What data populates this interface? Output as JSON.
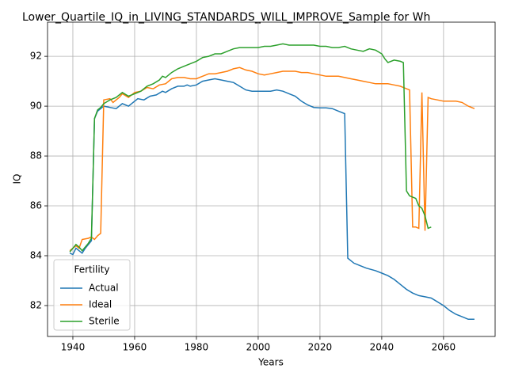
{
  "chart_data": {
    "type": "line",
    "title": "Lower_Quartile_IQ_in_LIVING_STANDARDS_WILL_IMPROVE_Sample for Wh",
    "xlabel": "Years",
    "ylabel": "IQ",
    "xlim": [
      1931.8,
      2076.7
    ],
    "ylim": [
      80.76,
      93.37
    ],
    "xticks": [
      1940,
      1960,
      1980,
      2000,
      2020,
      2040,
      2060
    ],
    "yticks": [
      82,
      84,
      86,
      88,
      90,
      92
    ],
    "grid": true,
    "legend_title": "Fertility",
    "legend_loc": "lower left",
    "series": [
      {
        "name": "Actual",
        "color": "#1f77b4",
        "x": [
          1939,
          1940,
          1941,
          1942,
          1943,
          1944,
          1946,
          1947,
          1948,
          1949,
          1950,
          1952,
          1954,
          1956,
          1958,
          1960,
          1961,
          1963,
          1965,
          1967,
          1969,
          1970,
          1972,
          1974,
          1976,
          1977,
          1978,
          1980,
          1982,
          1984,
          1986,
          1988,
          1990,
          1992,
          1994,
          1996,
          1998,
          2000,
          2002,
          2004,
          2006,
          2008,
          2010,
          2012,
          2014,
          2016,
          2018,
          2020,
          2022,
          2024,
          2026,
          2028,
          2029,
          2031,
          2033,
          2035,
          2038,
          2040,
          2042,
          2044,
          2046,
          2048,
          2050,
          2052,
          2054,
          2056,
          2058,
          2060,
          2062,
          2064,
          2066,
          2068,
          2070
        ],
        "values": [
          84.1,
          84.05,
          84.3,
          84.2,
          84.1,
          84.3,
          84.6,
          89.5,
          89.8,
          89.9,
          90.0,
          89.95,
          89.9,
          90.1,
          90.0,
          90.2,
          90.3,
          90.25,
          90.4,
          90.45,
          90.6,
          90.55,
          90.7,
          90.8,
          90.8,
          90.85,
          90.8,
          90.85,
          91.0,
          91.05,
          91.1,
          91.05,
          91.0,
          90.95,
          90.8,
          90.65,
          90.6,
          90.6,
          90.6,
          90.6,
          90.65,
          90.6,
          90.5,
          90.4,
          90.2,
          90.05,
          89.95,
          89.93,
          89.93,
          89.9,
          89.8,
          89.7,
          83.9,
          83.7,
          83.6,
          83.5,
          83.4,
          83.3,
          83.2,
          83.05,
          82.85,
          82.65,
          82.5,
          82.4,
          82.35,
          82.3,
          82.15,
          82.0,
          81.8,
          81.65,
          81.55,
          81.45,
          81.45
        ]
      },
      {
        "name": "Ideal",
        "color": "#ff7f0e",
        "x": [
          1939,
          1941,
          1942,
          1943,
          1945,
          1946,
          1947,
          1948,
          1949,
          1950,
          1952,
          1953,
          1955,
          1956,
          1958,
          1960,
          1962,
          1964,
          1966,
          1968,
          1970,
          1972,
          1974,
          1976,
          1978,
          1980,
          1982,
          1984,
          1986,
          1988,
          1990,
          1992,
          1994,
          1996,
          1998,
          2000,
          2002,
          2004,
          2006,
          2008,
          2010,
          2012,
          2014,
          2016,
          2018,
          2020,
          2022,
          2024,
          2026,
          2028,
          2030,
          2032,
          2034,
          2036,
          2038,
          2040,
          2042,
          2044,
          2046,
          2048,
          2049,
          2050,
          2051,
          2052,
          2053,
          2054,
          2055,
          2056,
          2058,
          2060,
          2062,
          2064,
          2066,
          2068,
          2070
        ],
        "values": [
          84.2,
          84.4,
          84.3,
          84.65,
          84.7,
          84.75,
          84.65,
          84.8,
          84.9,
          90.25,
          90.3,
          90.15,
          90.35,
          90.5,
          90.35,
          90.55,
          90.6,
          90.75,
          90.7,
          90.85,
          90.9,
          91.1,
          91.15,
          91.15,
          91.1,
          91.1,
          91.2,
          91.3,
          91.3,
          91.35,
          91.4,
          91.5,
          91.55,
          91.45,
          91.4,
          91.3,
          91.25,
          91.3,
          91.35,
          91.4,
          91.4,
          91.4,
          91.35,
          91.35,
          91.3,
          91.25,
          91.2,
          91.2,
          91.2,
          91.15,
          91.1,
          91.05,
          91.0,
          90.95,
          90.9,
          90.9,
          90.9,
          90.85,
          90.8,
          90.7,
          90.65,
          85.15,
          85.15,
          85.1,
          90.55,
          85.0,
          90.35,
          90.3,
          90.25,
          90.2,
          90.2,
          90.2,
          90.15,
          90.0,
          89.9
        ]
      },
      {
        "name": "Sterile",
        "color": "#2ca02c",
        "x": [
          1939,
          1941,
          1942,
          1943,
          1945,
          1946,
          1947,
          1948,
          1949,
          1950,
          1952,
          1954,
          1956,
          1958,
          1960,
          1962,
          1964,
          1966,
          1968,
          1969,
          1970,
          1972,
          1974,
          1976,
          1978,
          1980,
          1982,
          1984,
          1986,
          1988,
          1990,
          1992,
          1994,
          1996,
          1998,
          2000,
          2002,
          2004,
          2006,
          2008,
          2010,
          2012,
          2014,
          2016,
          2018,
          2020,
          2022,
          2024,
          2026,
          2028,
          2030,
          2032,
          2034,
          2036,
          2038,
          2040,
          2041,
          2042,
          2044,
          2046,
          2047,
          2048,
          2049,
          2051,
          2052,
          2053,
          2054,
          2055,
          2056
        ],
        "values": [
          84.15,
          84.45,
          84.35,
          84.2,
          84.5,
          84.7,
          89.5,
          89.85,
          89.95,
          90.1,
          90.25,
          90.35,
          90.55,
          90.4,
          90.5,
          90.6,
          90.8,
          90.9,
          91.05,
          91.2,
          91.15,
          91.35,
          91.5,
          91.6,
          91.7,
          91.8,
          91.95,
          92.0,
          92.1,
          92.1,
          92.2,
          92.3,
          92.35,
          92.35,
          92.35,
          92.35,
          92.4,
          92.4,
          92.45,
          92.5,
          92.45,
          92.45,
          92.45,
          92.45,
          92.45,
          92.4,
          92.4,
          92.35,
          92.35,
          92.4,
          92.3,
          92.25,
          92.2,
          92.3,
          92.25,
          92.1,
          91.9,
          91.75,
          91.85,
          91.8,
          91.75,
          86.6,
          86.4,
          86.3,
          86.0,
          85.9,
          85.6,
          85.1,
          85.15
        ]
      }
    ]
  }
}
